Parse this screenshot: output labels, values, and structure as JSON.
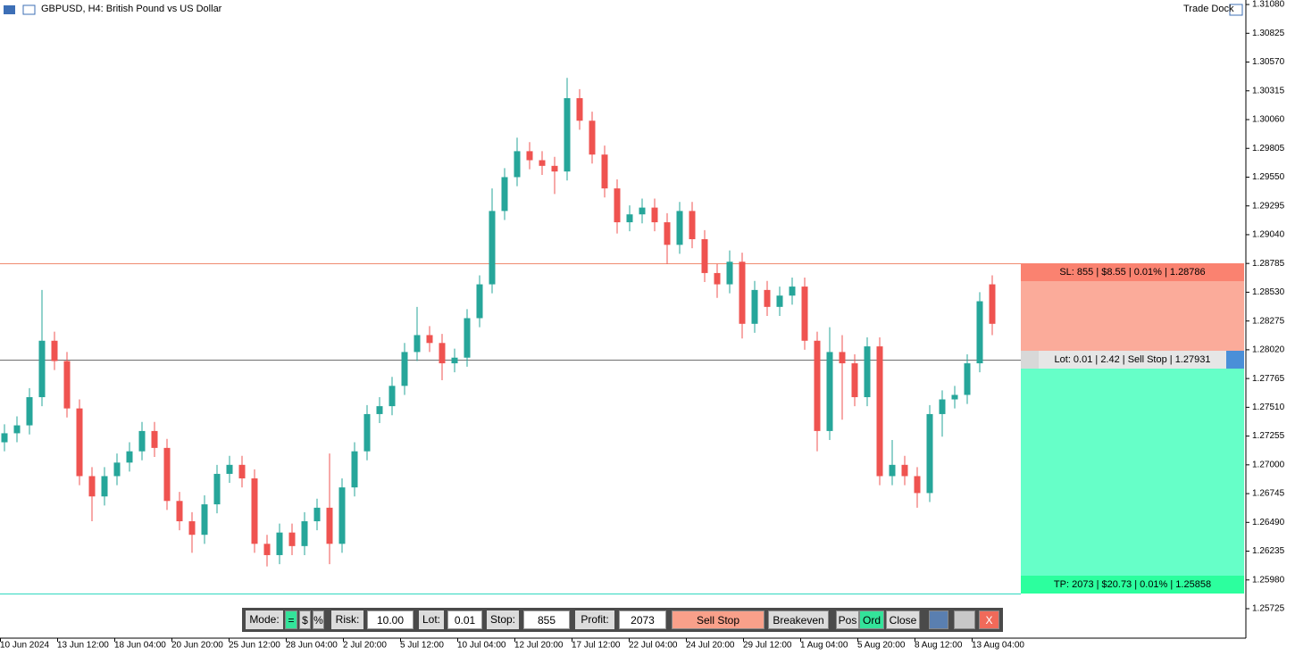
{
  "header": {
    "symbol": "GBPUSD, H4:  British Pound vs US Dollar",
    "dock": "Trade Dock"
  },
  "chart_data": {
    "type": "candlestick",
    "up_color": "#26a69a",
    "down_color": "#ef5350",
    "ylim": [
      1.25464,
      1.3112
    ],
    "yticks": [
      {
        "value": 1.3108,
        "label": "1.31080"
      },
      1.30825,
      {
        "value": 1.3057,
        "label": "1.30570"
      },
      1.30315,
      {
        "value": 1.3006,
        "label": "1.30060"
      },
      1.29805,
      {
        "value": 1.2955,
        "label": "1.29550"
      },
      1.29295,
      {
        "value": 1.2904,
        "label": "1.29040"
      },
      1.28785,
      {
        "value": 1.2853,
        "label": "1.28530"
      },
      1.28275,
      {
        "value": 1.2802,
        "label": "1.28020"
      },
      1.27765,
      {
        "value": 1.2751,
        "label": "1.27510"
      },
      1.27255,
      {
        "value": 1.27,
        "label": "1.27000"
      },
      1.26745,
      {
        "value": 1.2649,
        "label": "1.26490"
      },
      1.26235,
      {
        "value": 1.2598,
        "label": "1.25980"
      },
      1.25725
    ],
    "x_labels": [
      "10 Jun 2024",
      "13 Jun 12:00",
      "18 Jun 04:00",
      "20 Jun 20:00",
      "25 Jun 12:00",
      "28 Jun 04:00",
      "2 Jul 20:00",
      "5 Jul 12:00",
      "10 Jul 04:00",
      "12 Jul 20:00",
      "17 Jul 12:00",
      "22 Jul 04:00",
      "24 Jul 20:00",
      "29 Jul 12:00",
      "1 Aug 04:00",
      "5 Aug 20:00",
      "8 Aug 12:00",
      "13 Aug 04:00"
    ],
    "open": [
      1.272,
      1.2728,
      1.2735,
      1.276,
      1.281,
      1.2792,
      1.275,
      1.269,
      1.2672,
      1.269,
      1.2702,
      1.2712,
      1.273,
      1.2715,
      1.2668,
      1.265,
      1.2638,
      1.2665,
      1.2692,
      1.27,
      1.2688,
      1.263,
      1.262,
      1.264,
      1.2628,
      1.265,
      1.2662,
      1.263,
      1.268,
      1.2712,
      1.2745,
      1.2752,
      1.277,
      1.28,
      1.2815,
      1.2808,
      1.279,
      1.2795,
      1.283,
      1.286,
      1.2925,
      1.2955,
      1.2978,
      1.297,
      1.2965,
      1.296,
      1.3025,
      1.3005,
      1.2975,
      1.2945,
      1.2915,
      1.2922,
      1.2928,
      1.2915,
      1.2895,
      1.2925,
      1.29,
      1.287,
      1.286,
      1.288,
      1.2825,
      1.2855,
      1.284,
      1.285,
      1.2858,
      1.281,
      1.273,
      1.28,
      1.279,
      1.276,
      1.2805,
      1.269,
      1.27,
      1.269,
      1.2675,
      1.2745,
      1.2758,
      1.2762,
      1.279,
      1.286
    ],
    "high": [
      1.2736,
      1.2743,
      1.2768,
      1.2855,
      1.2818,
      1.28,
      1.2758,
      1.2698,
      1.2698,
      1.271,
      1.272,
      1.2738,
      1.2738,
      1.2723,
      1.2676,
      1.2658,
      1.2673,
      1.27,
      1.2708,
      1.2708,
      1.2696,
      1.2638,
      1.2648,
      1.2648,
      1.2658,
      1.267,
      1.271,
      1.2688,
      1.272,
      1.2753,
      1.276,
      1.2778,
      1.2808,
      1.284,
      1.2823,
      1.2816,
      1.2803,
      1.2838,
      1.2868,
      1.2945,
      1.2963,
      1.299,
      1.2986,
      1.2978,
      1.2973,
      1.3043,
      1.3033,
      1.3013,
      1.2983,
      1.2953,
      1.293,
      1.2936,
      1.2936,
      1.2923,
      1.2933,
      1.2933,
      1.2908,
      1.2878,
      1.289,
      1.2888,
      1.2863,
      1.2863,
      1.2858,
      1.2866,
      1.2866,
      1.2818,
      1.2822,
      1.2815,
      1.2798,
      1.2813,
      1.2813,
      1.2722,
      1.2708,
      1.2698,
      1.2753,
      1.2766,
      1.277,
      1.2798,
      1.2853,
      1.2868
    ],
    "low": [
      1.2712,
      1.272,
      1.2727,
      1.2752,
      1.2784,
      1.2742,
      1.2682,
      1.265,
      1.2664,
      1.2682,
      1.2694,
      1.2704,
      1.2707,
      1.266,
      1.2642,
      1.2622,
      1.263,
      1.2657,
      1.2684,
      1.268,
      1.2622,
      1.261,
      1.2612,
      1.262,
      1.262,
      1.2642,
      1.2612,
      1.2622,
      1.2672,
      1.2704,
      1.2737,
      1.2744,
      1.2762,
      1.2792,
      1.28,
      1.2775,
      1.2782,
      1.2787,
      1.2822,
      1.2852,
      1.2917,
      1.2947,
      1.2962,
      1.2957,
      1.294,
      1.2952,
      1.2997,
      1.2967,
      1.2937,
      1.2905,
      1.2907,
      1.2914,
      1.2907,
      1.2878,
      1.2887,
      1.2892,
      1.2862,
      1.2848,
      1.2852,
      1.2812,
      1.2817,
      1.2832,
      1.2832,
      1.2842,
      1.2802,
      1.2712,
      1.2722,
      1.274,
      1.2752,
      1.2752,
      1.2682,
      1.2682,
      1.2682,
      1.2662,
      1.2667,
      1.2725,
      1.275,
      1.2754,
      1.2782,
      1.2815
    ],
    "close": [
      1.2728,
      1.2735,
      1.276,
      1.281,
      1.2792,
      1.275,
      1.269,
      1.2672,
      1.269,
      1.2702,
      1.2712,
      1.273,
      1.2715,
      1.2668,
      1.265,
      1.2638,
      1.2665,
      1.2692,
      1.27,
      1.2688,
      1.263,
      1.262,
      1.264,
      1.2628,
      1.265,
      1.2662,
      1.263,
      1.268,
      1.2712,
      1.2745,
      1.2752,
      1.277,
      1.28,
      1.2815,
      1.2808,
      1.279,
      1.2795,
      1.283,
      1.286,
      1.2925,
      1.2955,
      1.2978,
      1.297,
      1.2965,
      1.296,
      1.3025,
      1.3005,
      1.2975,
      1.2945,
      1.2915,
      1.2922,
      1.2928,
      1.2915,
      1.2895,
      1.2925,
      1.29,
      1.287,
      1.286,
      1.288,
      1.2825,
      1.2855,
      1.284,
      1.285,
      1.2858,
      1.281,
      1.273,
      1.28,
      1.279,
      1.276,
      1.2805,
      1.269,
      1.27,
      1.269,
      1.2675,
      1.2745,
      1.2758,
      1.2762,
      1.279,
      1.2845,
      1.2825
    ],
    "levels": {
      "sl": {
        "value": 1.28786,
        "label": "SL: 855  |  $8.55  |  0.01%  |  1.28786",
        "color": "#f08a70"
      },
      "entry": {
        "value": 1.27931,
        "label": "Lot: 0.01  |  2.42  |  Sell Stop  |  1.27931",
        "color": "#707070"
      },
      "tp": {
        "value": 1.25858,
        "label": "TP: 2073  |  $20.73  |  0.01%  |  1.25858",
        "color": "#30d8c0"
      }
    }
  },
  "toolbar": {
    "mode_label": "Mode:",
    "mode_buttons": [
      "=",
      "$",
      "%"
    ],
    "risk_label": "Risk:",
    "risk": "10.00",
    "lot_label": "Lot:",
    "lot": "0.01",
    "stop_label": "Stop:",
    "stop": "855",
    "profit_label": "Profit:",
    "profit": "2073",
    "sell_stop": "Sell Stop",
    "breakeven": "Breakeven",
    "pos": "Pos",
    "ord": "Ord",
    "close": "Close",
    "exit": "X"
  }
}
